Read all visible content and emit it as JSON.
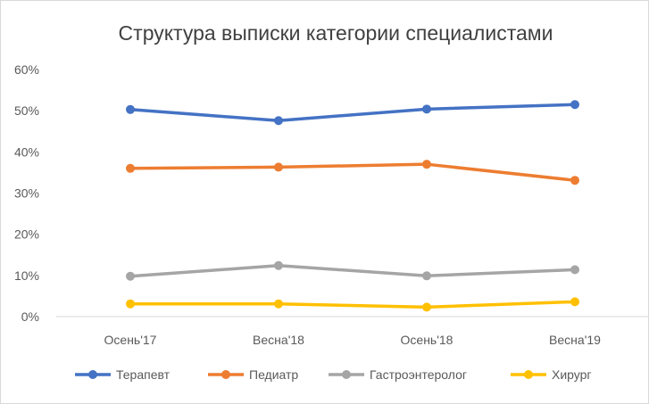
{
  "chart_data": {
    "type": "line",
    "title": "Структура выписки категории специалистами",
    "categories": [
      "Осень'17",
      "Весна'18",
      "Осень'18",
      "Весна'19"
    ],
    "ylim": [
      0,
      60
    ],
    "yticks": [
      0,
      10,
      20,
      30,
      40,
      50,
      60
    ],
    "ytick_labels": [
      "0%",
      "10%",
      "20%",
      "30%",
      "40%",
      "50%",
      "60%"
    ],
    "grid": false,
    "legend_position": "bottom",
    "series": [
      {
        "name": "Терапевт",
        "color": "#4472C4",
        "values": [
          50.3,
          47.6,
          50.4,
          51.5
        ]
      },
      {
        "name": "Педиатр",
        "color": "#ED7D31",
        "values": [
          36.0,
          36.3,
          37.0,
          33.1
        ]
      },
      {
        "name": "Гастроэнтеролог",
        "color": "#A5A5A5",
        "values": [
          9.8,
          12.4,
          9.9,
          11.4
        ]
      },
      {
        "name": "Хирург",
        "color": "#FFC000",
        "values": [
          3.1,
          3.1,
          2.3,
          3.6
        ]
      }
    ]
  }
}
